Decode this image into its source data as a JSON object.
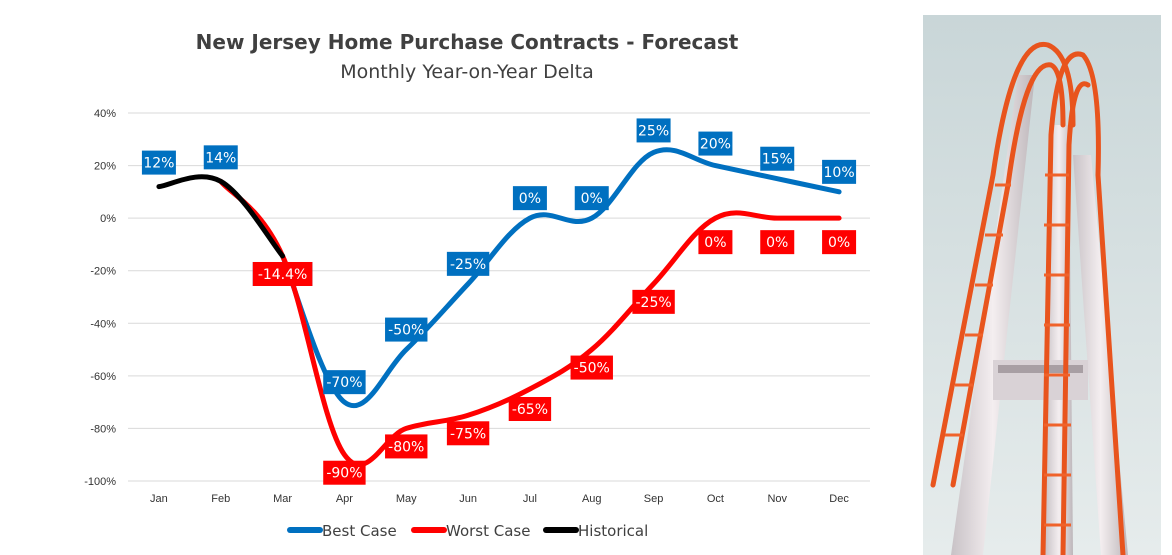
{
  "chart_data": {
    "type": "line",
    "title": "New Jersey Home Purchase Contracts - Forecast",
    "subtitle": "Monthly Year-on-Year Delta",
    "categories": [
      "Jan",
      "Feb",
      "Mar",
      "Apr",
      "May",
      "Jun",
      "Jul",
      "Aug",
      "Sep",
      "Oct",
      "Nov",
      "Dec"
    ],
    "ylim": [
      -100,
      40
    ],
    "yticks": [
      40,
      20,
      0,
      -20,
      -40,
      -60,
      -80,
      -100
    ],
    "ytick_labels": [
      "40%",
      "20%",
      "0%",
      "-20%",
      "-40%",
      "-60%",
      "-80%",
      "-100%"
    ],
    "grid": true,
    "legend_position": "bottom",
    "series": [
      {
        "name": "Best Case",
        "color": "#0070c0",
        "values": [
          null,
          null,
          -14.4,
          -70,
          -50,
          -25,
          0,
          0,
          25,
          20,
          15,
          10
        ],
        "labels": [
          null,
          null,
          "-14.4%",
          "-70%",
          "-50%",
          "-25%",
          "0%",
          "0%",
          "25%",
          "20%",
          "15%",
          "10%"
        ]
      },
      {
        "name": "Worst Case",
        "color": "#ff0000",
        "values": [
          null,
          14,
          -14.4,
          -90,
          -80,
          -75,
          -65,
          -50,
          -25,
          0,
          0,
          0
        ],
        "labels": [
          null,
          null,
          "-14.4%",
          "-90%",
          "-80%",
          "-75%",
          "-65%",
          "-50%",
          "-25%",
          "0%",
          "0%",
          "0%"
        ]
      },
      {
        "name": "Historical",
        "color": "#000000",
        "values": [
          12,
          14,
          -14.4,
          null,
          null,
          null,
          null,
          null,
          null,
          null,
          null,
          null
        ],
        "labels": [
          "12%",
          "14%",
          null,
          null,
          null,
          null,
          null,
          null,
          null,
          null,
          null,
          null
        ]
      }
    ]
  },
  "image": {
    "description_icon": "roller-coaster-photo"
  }
}
